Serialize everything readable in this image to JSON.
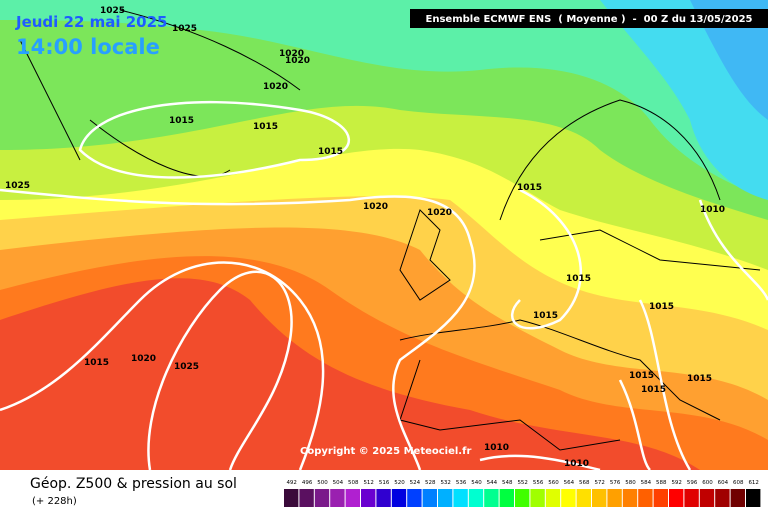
{
  "header": {
    "date": "Jeudi 22 mai 2025",
    "time": "14:00 locale",
    "model": "Ensemble ECMWF ENS  ( Moyenne )  -  00 Z du 13/05/2025"
  },
  "copyright": "Copyright © 2025 Meteociel.fr",
  "isobar_labels": [
    "1025",
    "1025",
    "1020",
    "1020",
    "1020",
    "1015",
    "1015",
    "1015",
    "1025",
    "1020",
    "1020",
    "1015",
    "1010",
    "1015",
    "1015",
    "1015",
    "1020",
    "1025",
    "1010",
    "1010",
    "1015",
    "1015",
    "1015",
    "1015"
  ],
  "footer": {
    "title": "Géop. Z500 & pression au sol",
    "subtitle": "(+ 228h)"
  },
  "colorbar": {
    "labels": [
      "492",
      "496",
      "500",
      "504",
      "508",
      "512",
      "516",
      "520",
      "524",
      "528",
      "532",
      "536",
      "540",
      "544",
      "548",
      "552",
      "556",
      "560",
      "564",
      "568",
      "572",
      "576",
      "580",
      "584",
      "588",
      "592",
      "596",
      "600",
      "604",
      "608",
      "612"
    ]
  }
}
